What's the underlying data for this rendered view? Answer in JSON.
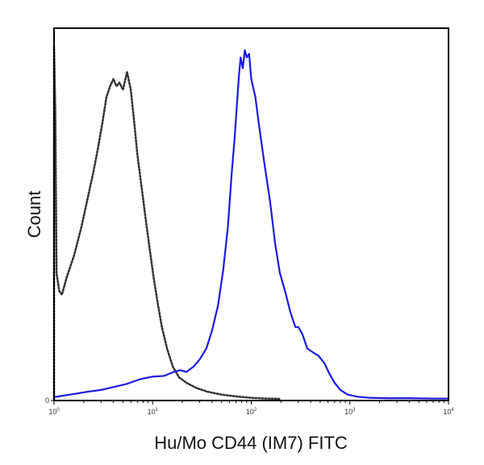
{
  "chart_data": {
    "type": "line",
    "title": "",
    "xlabel": "Hu/Mo CD44 (IM7) FITC",
    "ylabel": "Count",
    "x_scale": "log",
    "xlim": [
      1,
      10000
    ],
    "ylim": [
      0,
      100
    ],
    "grid": false,
    "legend": "none",
    "x_ticks": [
      {
        "base": "10",
        "exp": "0",
        "value": 1
      },
      {
        "base": "10",
        "exp": "1",
        "value": 10
      },
      {
        "base": "10",
        "exp": "2",
        "value": 100
      },
      {
        "base": "10",
        "exp": "3",
        "value": 1000
      },
      {
        "base": "10",
        "exp": "4",
        "value": 10000
      }
    ],
    "y_ticks": [
      {
        "label": "0",
        "value": 0
      }
    ],
    "series": [
      {
        "style": "dotted",
        "color": "#333333",
        "points": [
          [
            1.0,
            0
          ],
          [
            1.0,
            98
          ],
          [
            1.03,
            80
          ],
          [
            1.06,
            35
          ],
          [
            1.13,
            30
          ],
          [
            1.2,
            29
          ],
          [
            1.35,
            34
          ],
          [
            1.6,
            40
          ],
          [
            1.9,
            48
          ],
          [
            2.2,
            56
          ],
          [
            2.5,
            63
          ],
          [
            2.8,
            70
          ],
          [
            3.1,
            77
          ],
          [
            3.4,
            84
          ],
          [
            3.7,
            87
          ],
          [
            4.0,
            89
          ],
          [
            4.3,
            87
          ],
          [
            4.6,
            88
          ],
          [
            5.0,
            86
          ],
          [
            5.5,
            91
          ],
          [
            6.0,
            86
          ],
          [
            6.5,
            77
          ],
          [
            7.0,
            68
          ],
          [
            7.8,
            58
          ],
          [
            8.5,
            50
          ],
          [
            9.3,
            42
          ],
          [
            10.2,
            34
          ],
          [
            11.2,
            27
          ],
          [
            12.4,
            20
          ],
          [
            14.0,
            14
          ],
          [
            16.0,
            9
          ],
          [
            18.5,
            6
          ],
          [
            22,
            4.5
          ],
          [
            28,
            3
          ],
          [
            36,
            2
          ],
          [
            50,
            1.2
          ],
          [
            70,
            0.7
          ],
          [
            100,
            0.3
          ],
          [
            140,
            0.1
          ],
          [
            200,
            0
          ]
        ]
      },
      {
        "style": "solid",
        "color": "#1a1ae0",
        "points": [
          [
            1.0,
            0.5
          ],
          [
            1.3,
            1.0
          ],
          [
            1.7,
            1.5
          ],
          [
            2.2,
            2
          ],
          [
            3.0,
            2.5
          ],
          [
            4.0,
            3.3
          ],
          [
            5.5,
            4.2
          ],
          [
            7.5,
            5.5
          ],
          [
            10,
            6.2
          ],
          [
            13,
            6.4
          ],
          [
            16,
            7.4
          ],
          [
            19,
            8.0
          ],
          [
            22,
            7.5
          ],
          [
            26,
            9.0
          ],
          [
            30,
            11
          ],
          [
            35,
            14
          ],
          [
            40,
            19
          ],
          [
            46,
            26
          ],
          [
            52,
            36
          ],
          [
            58,
            48
          ],
          [
            63,
            62
          ],
          [
            68,
            73
          ],
          [
            72,
            83
          ],
          [
            75,
            90
          ],
          [
            78,
            95
          ],
          [
            82,
            92
          ],
          [
            86,
            97
          ],
          [
            90,
            95
          ],
          [
            95,
            96
          ],
          [
            100,
            89
          ],
          [
            110,
            84
          ],
          [
            120,
            76
          ],
          [
            135,
            66
          ],
          [
            155,
            55
          ],
          [
            175,
            43
          ],
          [
            195,
            35
          ],
          [
            220,
            30
          ],
          [
            250,
            24
          ],
          [
            280,
            20
          ],
          [
            300,
            20
          ],
          [
            330,
            18
          ],
          [
            370,
            14
          ],
          [
            420,
            13
          ],
          [
            480,
            12
          ],
          [
            550,
            10
          ],
          [
            620,
            7
          ],
          [
            700,
            4.5
          ],
          [
            800,
            2.5
          ],
          [
            950,
            1.2
          ],
          [
            1200,
            0.6
          ],
          [
            1600,
            0.3
          ],
          [
            2500,
            0.2
          ],
          [
            4000,
            0.2
          ],
          [
            7000,
            0.1
          ],
          [
            10000,
            0.1
          ]
        ]
      }
    ]
  }
}
